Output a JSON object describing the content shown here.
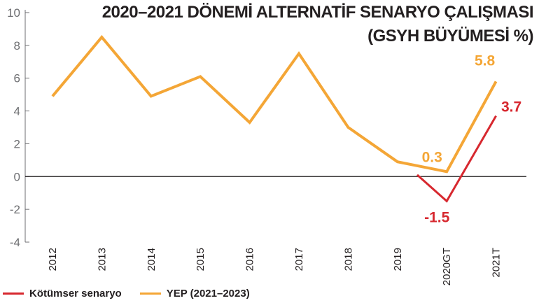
{
  "title": {
    "line1": "2020–2021 DÖNEMİ ALTERNATİF SENARYO ÇALIŞMASI",
    "line2": "(GSYH BÜYÜMESİ %)"
  },
  "colors": {
    "yep": "#f4a636",
    "kotumser": "#d7282f",
    "axis": "#6d6e71",
    "zero_line": "#231f20"
  },
  "legend": {
    "kotumser_label": "Kötümser senaryo",
    "yep_label": "YEP (2021–2023)"
  },
  "chart_data": {
    "type": "line",
    "title": "2020–2021 DÖNEMİ ALTERNATİF SENARYO ÇALIŞMASI (GSYH BÜYÜMESİ %)",
    "categories": [
      "2012",
      "2013",
      "2014",
      "2015",
      "2016",
      "2017",
      "2018",
      "2019",
      "2020GT",
      "2021T"
    ],
    "ylim": [
      -4,
      10
    ],
    "yticks": [
      10,
      8,
      6,
      4,
      2,
      0,
      -2,
      -4
    ],
    "grid": false,
    "legend_position": "bottom-left",
    "series": [
      {
        "name": "YEP (2021–2023)",
        "color": "#f4a636",
        "values": [
          4.9,
          8.5,
          4.9,
          6.1,
          3.3,
          7.5,
          3.0,
          0.9,
          0.3,
          5.8
        ]
      },
      {
        "name": "Kötümser senaryo",
        "color": "#d7282f",
        "values": [
          null,
          null,
          null,
          null,
          null,
          null,
          null,
          null,
          -1.5,
          3.7
        ],
        "lead_in": 0.6
      }
    ],
    "data_labels": [
      {
        "series": 0,
        "index": 8,
        "text": "0.3"
      },
      {
        "series": 0,
        "index": 9,
        "text": "5.8"
      },
      {
        "series": 1,
        "index": 8,
        "text": "-1.5"
      },
      {
        "series": 1,
        "index": 9,
        "text": "3.7"
      }
    ]
  }
}
